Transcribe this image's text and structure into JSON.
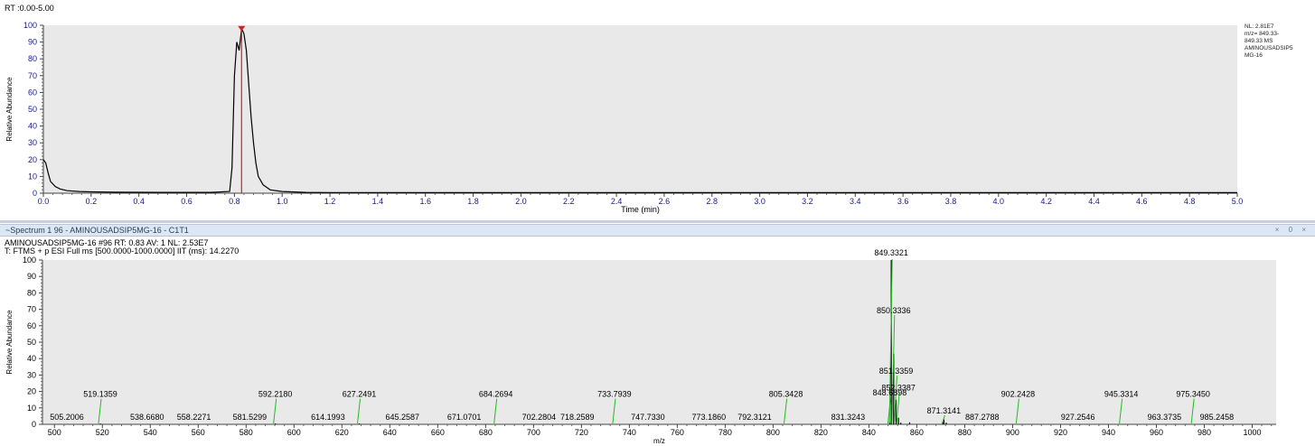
{
  "chromatogram": {
    "range_label": "RT :0.00-5.00",
    "info_lines": [
      "NL: 2.81E7",
      "m/z= 849.33-",
      "849.33 MS",
      "AMINOUSADSIP5",
      "MG-16"
    ]
  },
  "spectrum_panel": {
    "title": "~Spectrum  1  96 - AMINOUSADSIP5MG-16 - C1T1",
    "window_controls": "× 0 ×"
  },
  "spectrum_header": {
    "scan_line": "AMINOUSADSIP5MG-16 #96 RT: 0.83 AV: 1 NL: 2.53E7",
    "filter_line": "T: FTMS + p ESI Full ms [500.0000-1000.0000] IIT (ms): 14.2270"
  },
  "chart_data": [
    {
      "type": "line",
      "xlabel": "Time (min)",
      "ylabel": "Relative Abundance",
      "xlim": [
        0,
        5
      ],
      "ylim": [
        0,
        100
      ],
      "xticks": [
        "0.0",
        "0.2",
        "0.4",
        "0.6",
        "0.8",
        "1.0",
        "1.2",
        "1.4",
        "1.6",
        "1.8",
        "2.0",
        "2.2",
        "2.4",
        "2.6",
        "2.8",
        "3.0",
        "3.2",
        "3.4",
        "3.6",
        "3.8",
        "4.0",
        "4.2",
        "4.4",
        "4.6",
        "4.8",
        "5.0"
      ],
      "yticks": [
        "0",
        "10",
        "20",
        "30",
        "40",
        "50",
        "60",
        "70",
        "80",
        "90",
        "100"
      ],
      "series": [
        {
          "x": [
            0.0,
            0.01,
            0.02,
            0.03,
            0.05,
            0.07,
            0.1,
            0.15,
            0.2,
            0.3,
            0.5,
            0.7,
            0.78,
            0.79,
            0.8,
            0.81,
            0.82,
            0.83,
            0.84,
            0.85,
            0.86,
            0.87,
            0.88,
            0.89,
            0.9,
            0.92,
            0.95,
            1.0,
            1.1,
            1.2,
            2.0,
            3.0,
            4.0,
            5.0
          ],
          "y": [
            20,
            18,
            12,
            7,
            4,
            2.5,
            1.5,
            1,
            0.8,
            0.6,
            0.5,
            0.5,
            1,
            15,
            70,
            90,
            85,
            98,
            95,
            85,
            65,
            45,
            30,
            18,
            10,
            5,
            2,
            1,
            0.5,
            0.4,
            0.3,
            0.3,
            0.3,
            0.3
          ]
        }
      ],
      "marker": {
        "x": 0.83,
        "y": 98
      }
    },
    {
      "type": "bar",
      "xlabel": "m/z",
      "ylabel": "Relative Abundance",
      "xlim": [
        495,
        1010
      ],
      "ylim": [
        0,
        100
      ],
      "xticks": [
        "500",
        "520",
        "540",
        "560",
        "580",
        "600",
        "620",
        "640",
        "660",
        "680",
        "700",
        "720",
        "740",
        "760",
        "780",
        "800",
        "820",
        "840",
        "860",
        "880",
        "900",
        "920",
        "940",
        "960",
        "980",
        "1000"
      ],
      "yticks": [
        "0",
        "10",
        "20",
        "30",
        "40",
        "50",
        "60",
        "70",
        "80",
        "90",
        "100"
      ],
      "peaks": [
        {
          "mz": 849.3321,
          "y": 100
        },
        {
          "mz": 850.3336,
          "y": 43
        },
        {
          "mz": 851.3359,
          "y": 15
        },
        {
          "mz": 852.3387,
          "y": 4
        },
        {
          "mz": 848.6898,
          "y": 1.5
        },
        {
          "mz": 871.3141,
          "y": 3
        },
        {
          "mz": 870.8,
          "y": 1.5
        },
        {
          "mz": 872.3,
          "y": 1
        },
        {
          "mz": 857.0,
          "y": 1.2
        },
        {
          "mz": 853.3,
          "y": 1
        },
        {
          "mz": 519.1359,
          "y": 0.5
        },
        {
          "mz": 592.218,
          "y": 0.5
        },
        {
          "mz": 627.2491,
          "y": 0.5
        }
      ],
      "labels": [
        {
          "text": "849.3321",
          "mz": 849.3321,
          "y": 100
        },
        {
          "text": "850.3336",
          "mz": 850.3336,
          "y": 66
        },
        {
          "text": "851.3359",
          "mz": 851.3359,
          "y": 29
        },
        {
          "text": "852.3387",
          "mz": 852.3387,
          "y": 19
        },
        {
          "text": "848.6898",
          "mz": 848.6898,
          "y": 16
        },
        {
          "text": "871.3141",
          "mz": 871.3141,
          "y": 5
        },
        {
          "text": "505.2006",
          "mz": 505.2006,
          "y": 1
        },
        {
          "text": "519.1359",
          "mz": 519.1359,
          "y": 15
        },
        {
          "text": "538.6680",
          "mz": 538.668,
          "y": 1
        },
        {
          "text": "558.2271",
          "mz": 558.2271,
          "y": 1
        },
        {
          "text": "581.5299",
          "mz": 581.5299,
          "y": 1
        },
        {
          "text": "592.2180",
          "mz": 592.218,
          "y": 15
        },
        {
          "text": "614.1993",
          "mz": 614.1993,
          "y": 1
        },
        {
          "text": "627.2491",
          "mz": 627.2491,
          "y": 15
        },
        {
          "text": "645.2587",
          "mz": 645.2587,
          "y": 1
        },
        {
          "text": "671.0701",
          "mz": 671.0701,
          "y": 1
        },
        {
          "text": "684.2694",
          "mz": 684.2694,
          "y": 15
        },
        {
          "text": "702.2804",
          "mz": 702.2804,
          "y": 1
        },
        {
          "text": "718.2589",
          "mz": 718.2589,
          "y": 1
        },
        {
          "text": "733.7939",
          "mz": 733.7939,
          "y": 15
        },
        {
          "text": "747.7330",
          "mz": 747.733,
          "y": 1
        },
        {
          "text": "773.1860",
          "mz": 773.186,
          "y": 1
        },
        {
          "text": "792.3121",
          "mz": 792.3121,
          "y": 1
        },
        {
          "text": "805.3428",
          "mz": 805.3428,
          "y": 15
        },
        {
          "text": "831.3243",
          "mz": 831.3243,
          "y": 1
        },
        {
          "text": "887.2788",
          "mz": 887.2788,
          "y": 1
        },
        {
          "text": "902.2428",
          "mz": 902.2428,
          "y": 15
        },
        {
          "text": "927.2546",
          "mz": 927.2546,
          "y": 1
        },
        {
          "text": "945.3314",
          "mz": 945.3314,
          "y": 15
        },
        {
          "text": "963.3735",
          "mz": 963.3735,
          "y": 1
        },
        {
          "text": "975.3450",
          "mz": 975.345,
          "y": 15
        },
        {
          "text": "985.2458",
          "mz": 985.2458,
          "y": 1
        }
      ]
    }
  ],
  "colors": {
    "plot_bg": "#e9e9e9",
    "trace": "#000000",
    "marker": "#d42020",
    "label_leader": "#22bb22",
    "axis_text": "#1a1a8c"
  }
}
